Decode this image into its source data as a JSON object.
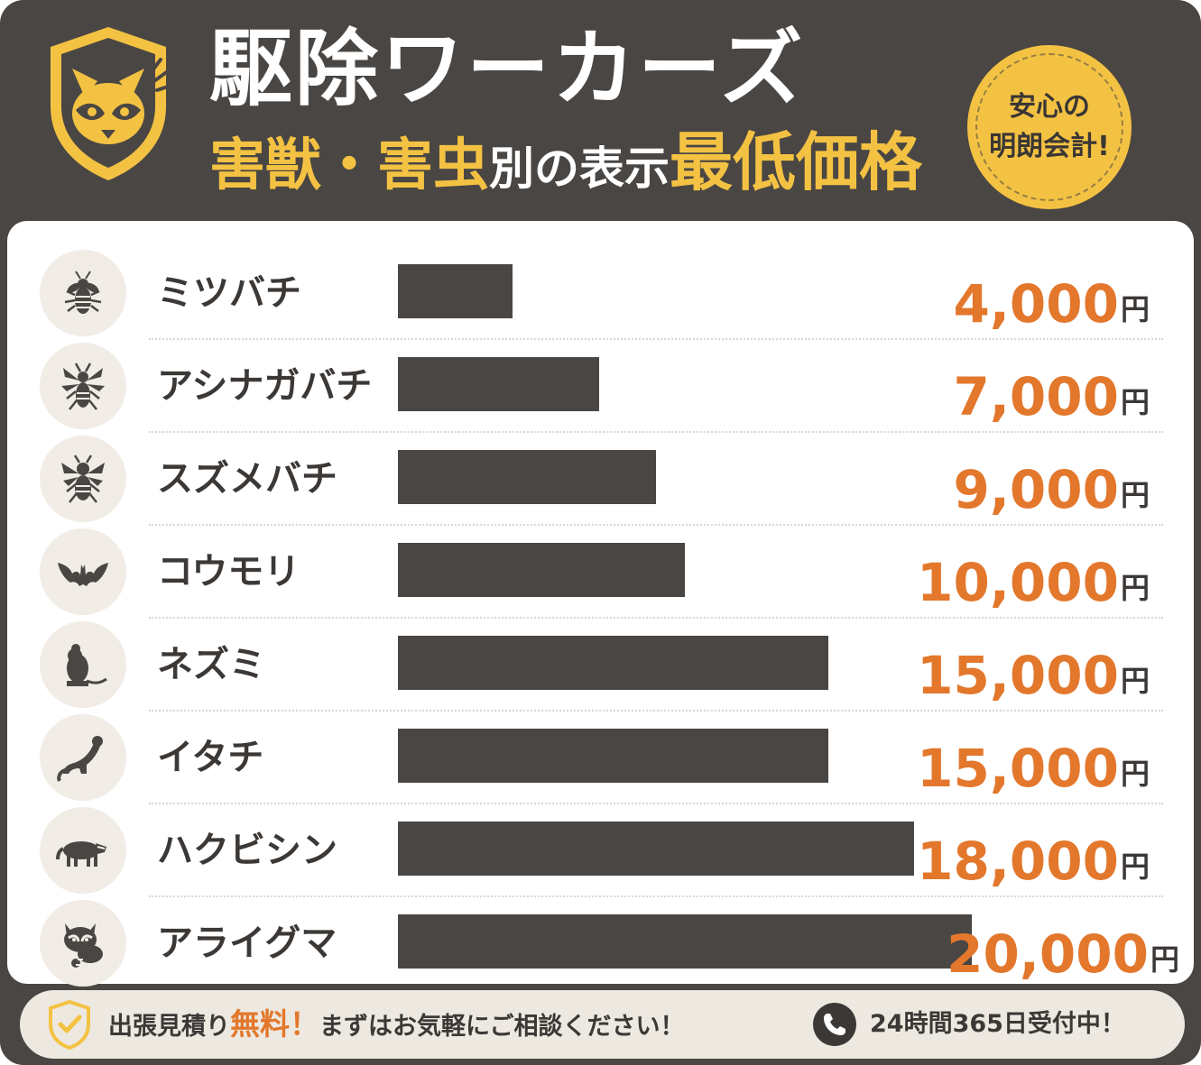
{
  "header": {
    "brand": "駆除ワーカーズ",
    "subtitle_parts": [
      "害獣・害虫",
      "別の表示",
      "最低価格"
    ],
    "badge_lines": [
      "安心の",
      "明朗会計!"
    ],
    "logo_icon": "raccoon-shield-icon"
  },
  "colors": {
    "dark": "#4a4643",
    "accent_yellow": "#f4c243",
    "accent_orange": "#e3772c",
    "icon_bg": "#f1ece5",
    "footer_bg": "#ede8e0"
  },
  "chart_data": {
    "type": "bar",
    "orientation": "horizontal",
    "categories": [
      "ミツバチ",
      "アシナガバチ",
      "スズメバチ",
      "コウモリ",
      "ネズミ",
      "イタチ",
      "ハクビシン",
      "アライグマ"
    ],
    "values": [
      4000,
      7000,
      9000,
      10000,
      15000,
      15000,
      18000,
      20000
    ],
    "value_labels": [
      "4,000",
      "7,000",
      "9,000",
      "10,000",
      "15,000",
      "15,000",
      "18,000",
      "20,000"
    ],
    "unit": "円",
    "icons": [
      "bee-icon",
      "paper-wasp-icon",
      "hornet-icon",
      "bat-icon",
      "mouse-icon",
      "weasel-icon",
      "civet-icon",
      "raccoon-icon"
    ],
    "grid": false
  },
  "footer": {
    "estimate_prefix": "出張見積り",
    "estimate_highlight": "無料！",
    "estimate_suffix": "まずはお気軽にご相談ください！",
    "hours": "24時間365日受付中！",
    "icons": [
      "shield-check-icon",
      "phone-icon"
    ]
  }
}
